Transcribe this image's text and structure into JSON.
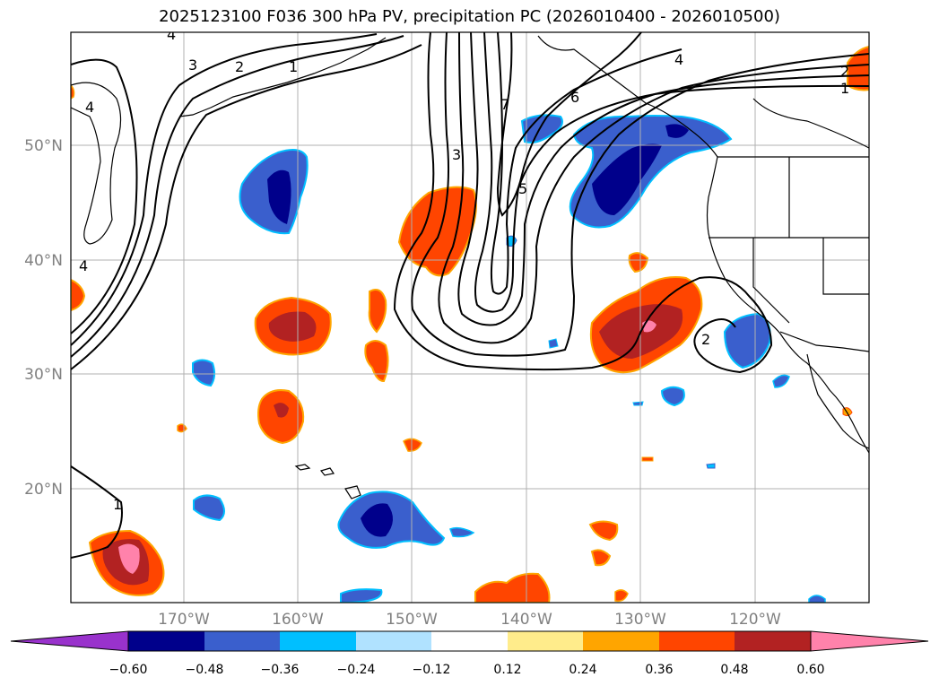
{
  "title": "2025123100 F036 300 hPa PV, precipitation PC (2026010400 - 2026010500)",
  "lat_labels": [
    "50°N",
    "40°N",
    "30°N",
    "20°N"
  ],
  "lon_labels": [
    "170°W",
    "160°W",
    "150°W",
    "140°W",
    "130°W",
    "120°W"
  ],
  "pv_contour_labels": [
    "4",
    "3",
    "2",
    "1",
    "4",
    "4",
    "3",
    "7",
    "5",
    "6",
    "4",
    "2",
    "1",
    "2",
    "1"
  ],
  "colorbar": {
    "ticks": [
      "−0.60",
      "−0.48",
      "−0.36",
      "−0.24",
      "−0.12",
      "0.12",
      "0.24",
      "0.36",
      "0.48",
      "0.60"
    ],
    "colors": [
      "#9932cc",
      "#00008b",
      "#3a5fcd",
      "#00bfff",
      "#b0e2ff",
      "#ffffff",
      "#ffec8b",
      "#ffa500",
      "#ff4500",
      "#b22222",
      "#ff82ab"
    ]
  },
  "colors": {
    "neg_strong": "#00008b",
    "neg_mid": "#3a5fcd",
    "neg_light": "#00bfff",
    "pos_light": "#ffec8b",
    "pos_mid": "#ffa500",
    "pos_orange": "#ff4500",
    "pos_red": "#b22222",
    "pos_pink": "#ff82ab",
    "grid": "#b0b0b0"
  }
}
